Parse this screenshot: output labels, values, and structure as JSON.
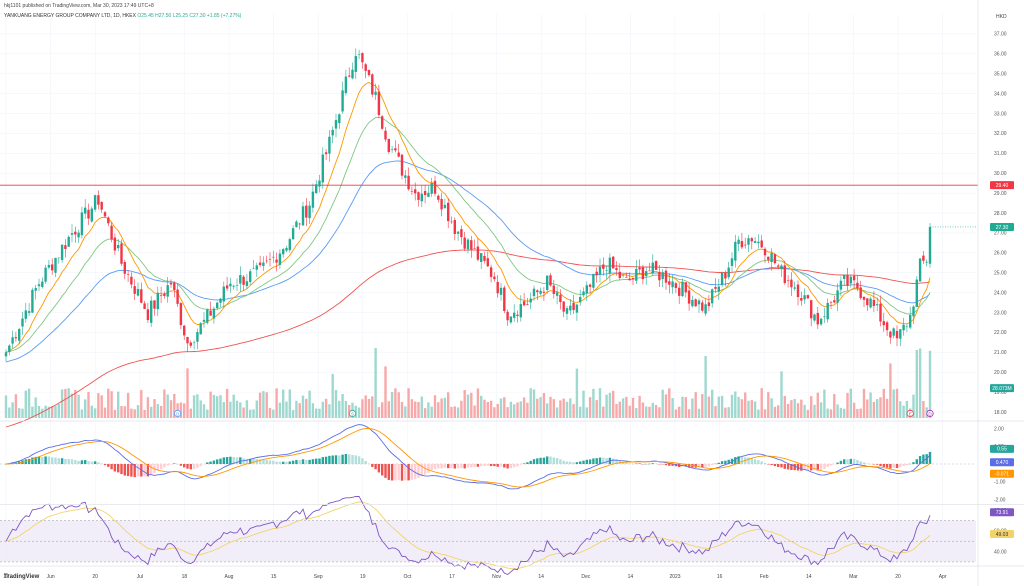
{
  "header": {
    "publisher_line": "hkj1101 published on TradingView.com, Mar 30, 2023 17:49 UTC+8",
    "symbol_line": "YANKUANG ENERGY GROUP COMPANY LTD, 1D, HKEX",
    "ohlc_line": "O25.45  H27.50  L25.25  C27.30  +1.85 (+7.27%)",
    "currency": "HKD"
  },
  "brand": "TradingView",
  "chart_data": [
    {
      "type": "candlestick",
      "panel": "price",
      "y_axis_ticks": [
        "37.00",
        "36.00",
        "35.00",
        "34.00",
        "33.00",
        "32.00",
        "31.00",
        "30.00",
        "29.00",
        "28.00",
        "27.00",
        "26.00",
        "25.00",
        "24.00",
        "23.00",
        "22.00",
        "21.00",
        "20.00",
        "19.00",
        "18.00"
      ],
      "x_axis_ticks": [
        "17",
        "Jun",
        "20",
        "Jul",
        "18",
        "Aug",
        "15",
        "Sep",
        "19",
        "Oct",
        "17",
        "Nov",
        "14",
        "Dec",
        "14",
        "2023",
        "16",
        "Feb",
        "14",
        "Mar",
        "20",
        "Apr"
      ],
      "price_labels": {
        "resistance": "29.40",
        "last": "27.30",
        "volume": "28.073M"
      },
      "resistance_line": 29.4,
      "ylim": [
        17.7,
        37.5
      ],
      "events": [
        "D",
        "S",
        "E",
        "D"
      ],
      "colors": {
        "up": "#22ab94",
        "down": "#f23645",
        "ema_short": "#ff9800",
        "ema_mid": "#81c784",
        "ema_long": "#5b9cf6",
        "ema_200": "#ef5350",
        "resistance": "#f23645"
      },
      "anchors": [
        {
          "i": 0,
          "c": 21.0
        },
        {
          "i": 10,
          "c": 24.5
        },
        {
          "i": 20,
          "c": 27.0
        },
        {
          "i": 28,
          "c": 28.7
        },
        {
          "i": 35,
          "c": 25.5
        },
        {
          "i": 43,
          "c": 23.0
        },
        {
          "i": 50,
          "c": 24.5
        },
        {
          "i": 55,
          "c": 21.5
        },
        {
          "i": 60,
          "c": 22.5
        },
        {
          "i": 68,
          "c": 24.5
        },
        {
          "i": 77,
          "c": 25.0
        },
        {
          "i": 85,
          "c": 26.5
        },
        {
          "i": 92,
          "c": 28.5
        },
        {
          "i": 98,
          "c": 31.5
        },
        {
          "i": 103,
          "c": 34.5
        },
        {
          "i": 106,
          "c": 36.2
        },
        {
          "i": 112,
          "c": 33.8
        },
        {
          "i": 116,
          "c": 31.5
        },
        {
          "i": 120,
          "c": 30.2
        },
        {
          "i": 124,
          "c": 29.0
        },
        {
          "i": 130,
          "c": 29.3
        },
        {
          "i": 136,
          "c": 27.3
        },
        {
          "i": 142,
          "c": 26.0
        },
        {
          "i": 148,
          "c": 24.8
        },
        {
          "i": 152,
          "c": 23.0
        },
        {
          "i": 158,
          "c": 23.5
        },
        {
          "i": 164,
          "c": 24.5
        },
        {
          "i": 170,
          "c": 22.8
        },
        {
          "i": 176,
          "c": 24.0
        },
        {
          "i": 182,
          "c": 25.5
        },
        {
          "i": 188,
          "c": 24.5
        },
        {
          "i": 194,
          "c": 25.2
        },
        {
          "i": 200,
          "c": 24.8
        },
        {
          "i": 206,
          "c": 24.0
        },
        {
          "i": 212,
          "c": 23.2
        },
        {
          "i": 218,
          "c": 25.0
        },
        {
          "i": 222,
          "c": 26.6
        },
        {
          "i": 226,
          "c": 26.8
        },
        {
          "i": 230,
          "c": 26.3
        },
        {
          "i": 235,
          "c": 25.0
        },
        {
          "i": 240,
          "c": 24.2
        },
        {
          "i": 246,
          "c": 22.6
        },
        {
          "i": 250,
          "c": 23.5
        },
        {
          "i": 254,
          "c": 24.5
        },
        {
          "i": 258,
          "c": 24.3
        },
        {
          "i": 262,
          "c": 23.5
        },
        {
          "i": 266,
          "c": 22.5
        },
        {
          "i": 270,
          "c": 21.6
        },
        {
          "i": 274,
          "c": 22.8
        },
        {
          "i": 277,
          "c": 25.3
        },
        {
          "i": 279,
          "c": 25.7
        },
        {
          "i": 280,
          "c": 27.3
        }
      ]
    },
    {
      "type": "bar",
      "panel": "macd",
      "y_axis_ticks": [
        "2.00",
        "1.00",
        "-1.00",
        "-2.00"
      ],
      "ylim": [
        -2.2,
        2.2
      ],
      "labels": {
        "histogram": "0.55",
        "macd": "0.470",
        "signal": "-0.071"
      },
      "colors": {
        "macd": "#5b6ee8",
        "signal": "#ff9800",
        "hist_pos_strong": "#26a69a",
        "hist_pos_weak": "#b2dfdb",
        "hist_neg_strong": "#ef5350",
        "hist_neg_weak": "#ffcdd2"
      }
    },
    {
      "type": "line",
      "panel": "rsi",
      "y_axis_ticks": [
        "80.00",
        "60.00",
        "40.00"
      ],
      "ylim": [
        28,
        84
      ],
      "band": [
        30,
        70
      ],
      "labels": {
        "rsi": "73.91",
        "rsi_ma": "49.03"
      },
      "colors": {
        "rsi": "#7e57c2",
        "rsi_ma": "#f2d36b",
        "band": "#ede7f6"
      }
    }
  ]
}
